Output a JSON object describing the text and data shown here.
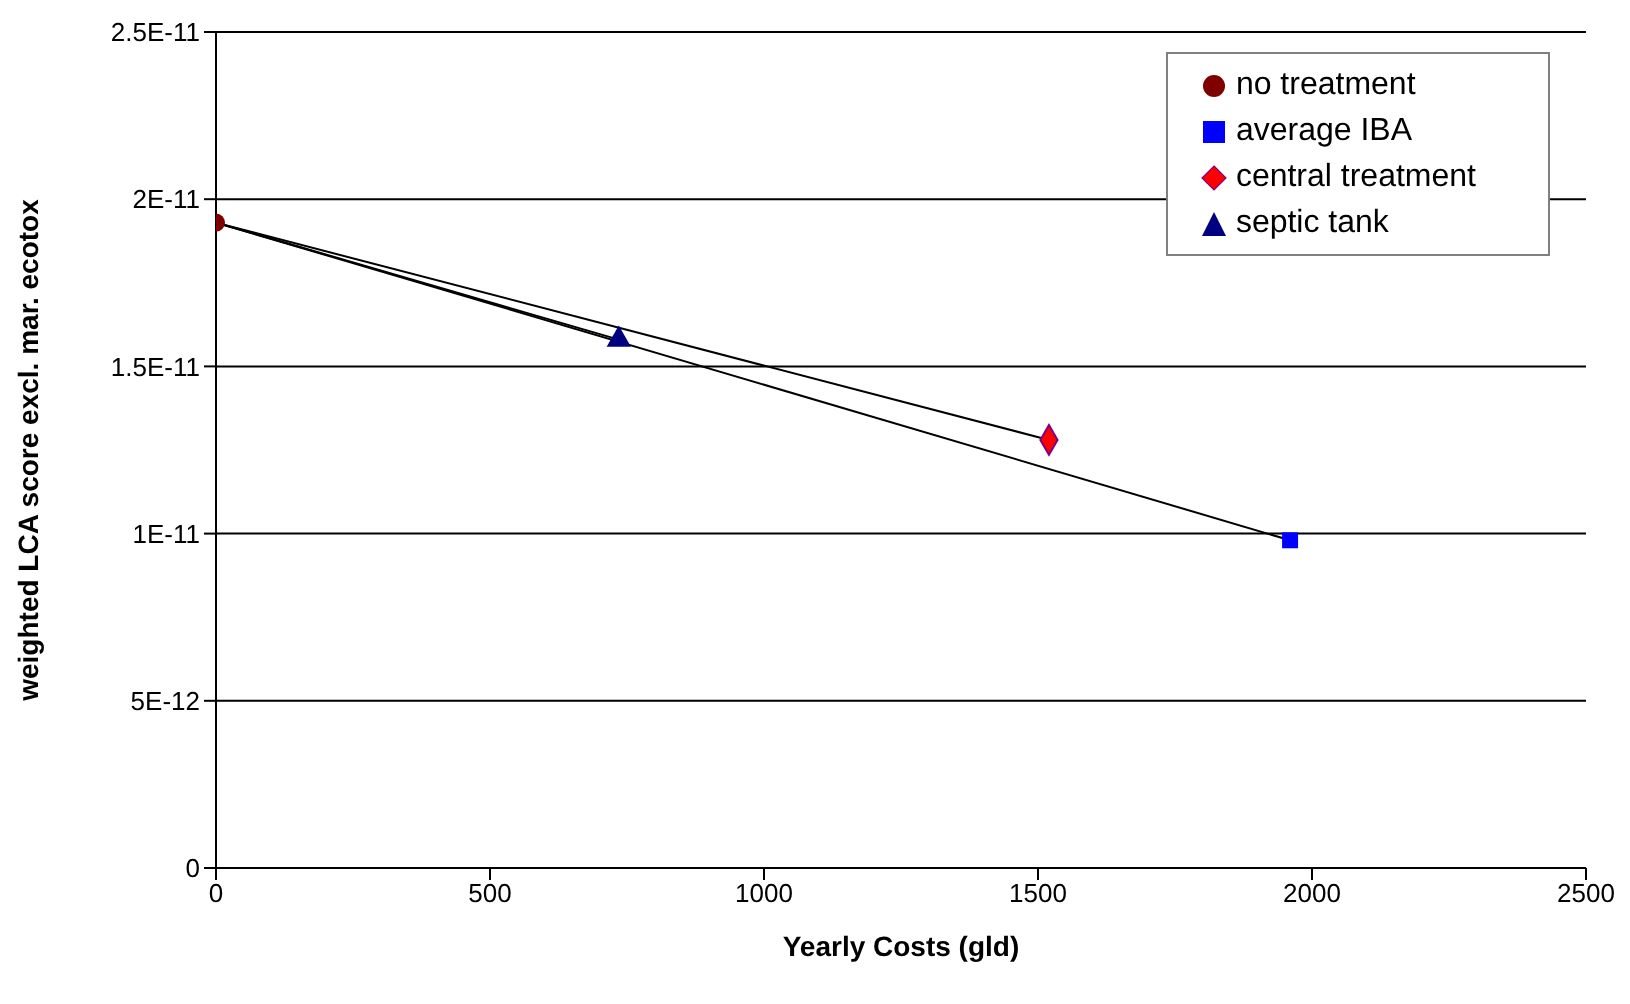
{
  "chart_data": {
    "type": "scatter",
    "xlabel": "Yearly Costs (gld)",
    "ylabel": "weighted LCA score excl. mar. ecotox",
    "xlim": [
      0,
      2500
    ],
    "xticks": [
      0,
      500,
      1000,
      1500,
      2000,
      2500
    ],
    "ylim": [
      0,
      2.5e-11
    ],
    "yticks": [
      0,
      {
        "value": 5e-12,
        "label": "5E-12"
      },
      {
        "value": 1e-11,
        "label": "1E-11"
      },
      {
        "value": 1.5e-11,
        "label": "1.5E-11"
      },
      {
        "value": 2e-11,
        "label": "2E-11"
      },
      {
        "value": 2.5e-11,
        "label": "2.5E-11"
      }
    ],
    "grid": "y",
    "legend": "top right",
    "series": [
      {
        "type": "line",
        "color": "#000000",
        "marker": "none",
        "x": [
          0,
          735
        ],
        "values": [
          1.93e-11,
          1.58e-11
        ]
      },
      {
        "type": "line",
        "color": "#000000",
        "marker": "none",
        "x": [
          0,
          1520
        ],
        "values": [
          1.93e-11,
          1.28e-11
        ]
      },
      {
        "type": "line",
        "color": "#000000",
        "marker": "none",
        "x": [
          0,
          1960
        ],
        "values": [
          1.93e-11,
          9.8e-12
        ]
      },
      {
        "name": "no treatment",
        "color": "#800000",
        "marker": "circle",
        "x": [
          0
        ],
        "values": [
          1.93e-11
        ]
      },
      {
        "name": "average IBA",
        "color": "#0000ff",
        "marker": "square",
        "x": [
          1960
        ],
        "values": [
          9.8e-12
        ]
      },
      {
        "name": "central treatment",
        "color": "#ff0000",
        "marker": "diamond",
        "x": [
          1520
        ],
        "values": [
          1.28e-11
        ]
      },
      {
        "name": "septic tank",
        "color": "#000080",
        "marker": "triangle",
        "x": [
          735
        ],
        "values": [
          1.58e-11
        ]
      }
    ]
  }
}
